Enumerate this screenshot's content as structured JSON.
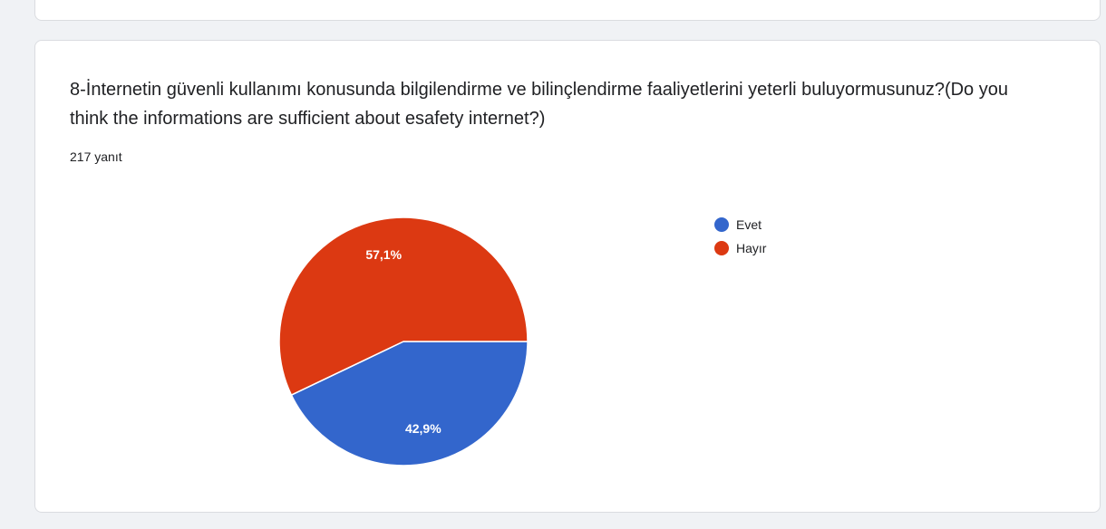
{
  "question": {
    "title": "8-İnternetin güvenli kullanımı konusunda bilgilendirme ve bilinçlendirme faaliyetlerini yeterli buluyormusunuz?(Do you think the informations are sufficient about esafety internet?)",
    "response_count": "217 yanıt"
  },
  "chart_data": {
    "type": "pie",
    "categories": [
      "Evet",
      "Hayır"
    ],
    "values": [
      42.9,
      57.1
    ],
    "labels": [
      "42,9%",
      "57,1%"
    ],
    "colors": [
      "#3366cc",
      "#dc3912"
    ],
    "legend_position": "right"
  }
}
